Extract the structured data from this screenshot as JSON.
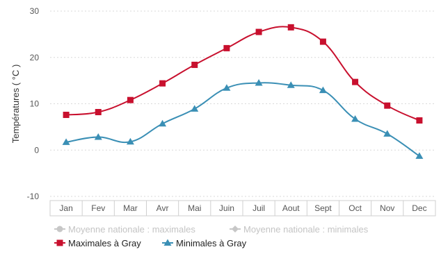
{
  "chart_data": {
    "type": "line",
    "ylabel": "Températures ( °C )",
    "xlabel": "",
    "ylim": [
      -10,
      30
    ],
    "yticks": [
      -10,
      0,
      10,
      20,
      30
    ],
    "grid": "horizontal dotted",
    "legend_position": "bottom-left",
    "categories": [
      "Jan",
      "Fev",
      "Mar",
      "Avr",
      "Mai",
      "Juin",
      "Juil",
      "Aout",
      "Sept",
      "Oct",
      "Nov",
      "Dec"
    ],
    "series": [
      {
        "name": "Maximales à Gray",
        "color": "#c8102e",
        "marker": "square",
        "values": [
          7.6,
          8.2,
          10.8,
          14.4,
          18.4,
          22.0,
          25.5,
          26.5,
          23.4,
          14.7,
          9.6,
          6.4
        ]
      },
      {
        "name": "Minimales à Gray",
        "color": "#3a8fb5",
        "marker": "triangle",
        "values": [
          1.7,
          2.8,
          1.8,
          5.7,
          8.9,
          13.4,
          14.5,
          14.0,
          12.9,
          6.7,
          3.5,
          -1.3
        ]
      }
    ],
    "legend": [
      {
        "label": "Moyenne nationale : maximales",
        "color": "#c7c7c7",
        "marker": "circle",
        "visible": false
      },
      {
        "label": "Moyenne nationale : minimales",
        "color": "#c7c7c7",
        "marker": "diamond",
        "visible": false
      },
      {
        "label": "Maximales à Gray",
        "color": "#c8102e",
        "marker": "square",
        "visible": true
      },
      {
        "label": "Minimales à Gray",
        "color": "#3a8fb5",
        "marker": "triangle",
        "visible": true
      }
    ]
  }
}
